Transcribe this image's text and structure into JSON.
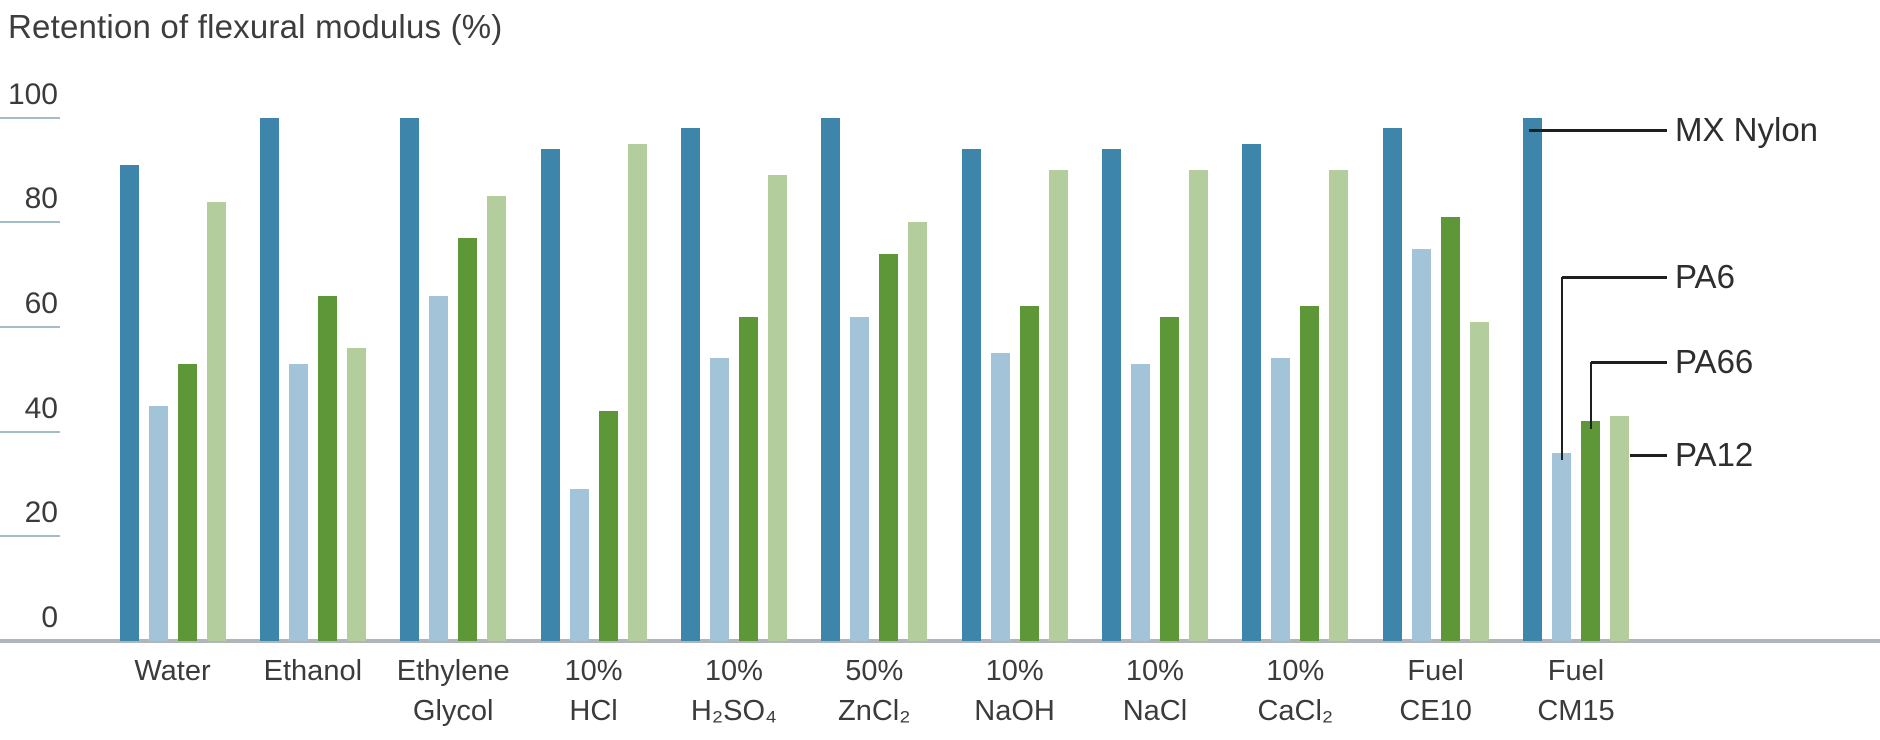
{
  "title": "Retention of flexural modulus (%)",
  "colors": {
    "mx_nylon": "#3e85ab",
    "pa6": "#a3c4d8",
    "pa66": "#5e9738",
    "pa12": "#b4cd9c",
    "tick_line": "#a4bcc8",
    "axis_line": "#b0b5b9",
    "text": "#3b3b3b",
    "callout_line": "#1f1f1f"
  },
  "chart_data": {
    "type": "bar",
    "title": "Retention of flexural modulus (%)",
    "xlabel": "",
    "ylabel": "Retention of flexural modulus (%)",
    "ylim": [
      0,
      100
    ],
    "y_ticks": [
      0,
      20,
      40,
      60,
      80,
      100
    ],
    "grid": "short tick stubs on left axis only",
    "legend_position": "right side callout labels pointing to bars of last group",
    "categories": [
      "Water",
      "Ethanol",
      "Ethylene Glycol",
      "10% HCl",
      "10% H₂SO₄",
      "50% ZnCl₂",
      "10% NaOH",
      "10% NaCl",
      "10% CaCl₂",
      "Fuel CE10",
      "Fuel CM15"
    ],
    "category_label_lines": [
      [
        "Water",
        ""
      ],
      [
        "Ethanol",
        ""
      ],
      [
        "Ethylene",
        "Glycol"
      ],
      [
        "10%",
        "HCl"
      ],
      [
        "10%",
        "H₂SO₄"
      ],
      [
        "50%",
        "ZnCl₂"
      ],
      [
        "10%",
        "NaOH"
      ],
      [
        "10%",
        "NaCl"
      ],
      [
        "10%",
        "CaCl₂"
      ],
      [
        "Fuel",
        "CE10"
      ],
      [
        "Fuel",
        "CM15"
      ]
    ],
    "series": [
      {
        "name": "MX Nylon",
        "color": "#3e85ab",
        "values": [
          91,
          100,
          100,
          94,
          98,
          100,
          94,
          94,
          95,
          98,
          100
        ]
      },
      {
        "name": "PA6",
        "color": "#a3c4d8",
        "values": [
          45,
          53,
          66,
          29,
          54,
          62,
          55,
          53,
          54,
          75,
          36
        ]
      },
      {
        "name": "PA66",
        "color": "#5e9738",
        "values": [
          53,
          66,
          77,
          44,
          62,
          74,
          64,
          62,
          64,
          81,
          42
        ]
      },
      {
        "name": "PA12",
        "color": "#b4cd9c",
        "values": [
          84,
          56,
          85,
          95,
          89,
          80,
          90,
          90,
          90,
          61,
          43
        ]
      }
    ]
  }
}
